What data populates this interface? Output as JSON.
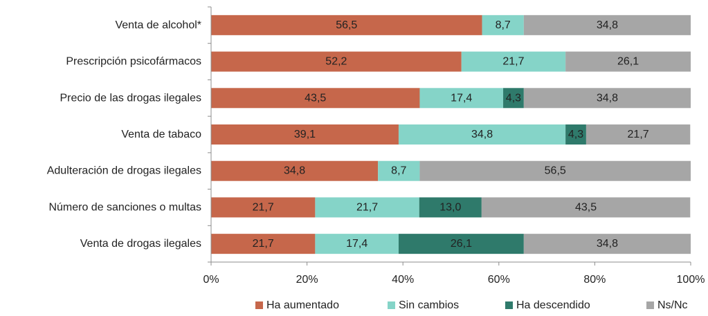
{
  "chart_data": {
    "type": "bar",
    "orientation": "horizontal",
    "stacked": true,
    "categories": [
      "Venta de alcohol*",
      "Prescripción psicofármacos",
      "Precio de las drogas ilegales",
      "Venta de tabaco",
      "Adulteración de drogas ilegales",
      "Número de sanciones o multas",
      "Venta de drogas ilegales"
    ],
    "series": [
      {
        "name": "Ha aumentado",
        "color": "#c6674b",
        "values": [
          56.5,
          52.2,
          43.5,
          39.1,
          34.8,
          21.7,
          21.7
        ],
        "labels": [
          "56,5",
          "52,2",
          "43,5",
          "39,1",
          "34,8",
          "21,7",
          "21,7"
        ]
      },
      {
        "name": "Sin cambios",
        "color": "#85d4c8",
        "values": [
          8.7,
          21.7,
          17.4,
          34.8,
          8.7,
          21.7,
          17.4
        ],
        "labels": [
          "8,7",
          "21,7",
          "17,4",
          "34,8",
          "8,7",
          "21,7",
          "17,4"
        ]
      },
      {
        "name": "Ha descendido",
        "color": "#2f7a6b",
        "values": [
          0,
          0,
          4.3,
          4.3,
          0,
          13.0,
          26.1
        ],
        "labels": [
          "",
          "",
          "4,3",
          "4,3",
          "",
          "13,0",
          "26,1"
        ]
      },
      {
        "name": "Ns/Nc",
        "color": "#a6a6a6",
        "values": [
          34.8,
          26.1,
          34.8,
          21.7,
          56.5,
          43.5,
          34.8
        ],
        "labels": [
          "34,8",
          "26,1",
          "34,8",
          "21,7",
          "56,5",
          "43,5",
          "34,8"
        ]
      }
    ],
    "xlim": [
      0,
      100
    ],
    "xticks": [
      "0%",
      "20%",
      "40%",
      "60%",
      "80%",
      "100%"
    ],
    "grid": false,
    "legend_position": "bottom"
  }
}
